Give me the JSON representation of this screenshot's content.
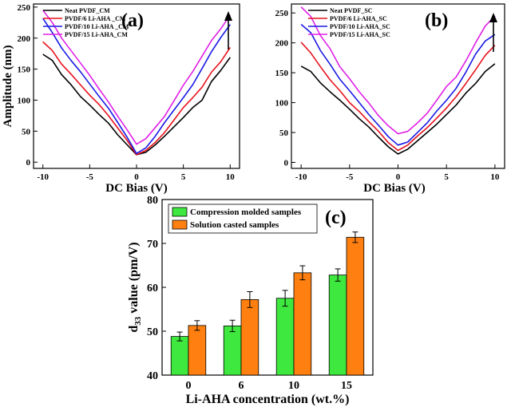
{
  "chart_data": [
    {
      "type": "line",
      "panel_label": "(a)",
      "xlabel": "DC Bias (V)",
      "ylabel": "Amplitude (nm)",
      "xlim": [
        -11,
        11
      ],
      "ylim": [
        -10,
        255
      ],
      "x_ticks": [
        -10,
        -5,
        0,
        5,
        10
      ],
      "y_ticks": [
        0,
        50,
        100,
        150,
        200,
        250
      ],
      "legend_position": "top-left",
      "arrow": "up",
      "x": [
        -10,
        -9,
        -8,
        -7,
        -6,
        -5,
        -4,
        -3,
        -2,
        -1,
        0,
        1,
        2,
        3,
        4,
        5,
        6,
        7,
        8,
        9,
        10
      ],
      "series": [
        {
          "name": "Neat PVDF_CM",
          "color": "#000000",
          "values": [
            174,
            164,
            141,
            125,
            106,
            92,
            77,
            63,
            44,
            28,
            12,
            16,
            28,
            42,
            57,
            72,
            88,
            100,
            130,
            148,
            169
          ]
        },
        {
          "name": "PVDF/6 Li-AHA _CM",
          "color": "#e8121c",
          "values": [
            194,
            180,
            158,
            142,
            125,
            108,
            93,
            75,
            55,
            35,
            12,
            19,
            32,
            48,
            68,
            88,
            104,
            121,
            145,
            162,
            185
          ]
        },
        {
          "name": "PVDF/10 Li-AHA _CM",
          "color": "#1a1ae6",
          "values": [
            232,
            209,
            184,
            164,
            146,
            126,
            106,
            87,
            64,
            40,
            14,
            23,
            42,
            64,
            84,
            104,
            125,
            151,
            178,
            201,
            222
          ]
        },
        {
          "name": "PVDF/15 Li-AHA_CM",
          "color": "#e020e8",
          "values": [
            245,
            225,
            200,
            180,
            160,
            140,
            118,
            97,
            74,
            52,
            29,
            38,
            56,
            74,
            99,
            124,
            146,
            171,
            196,
            215,
            237
          ]
        }
      ]
    },
    {
      "type": "line",
      "panel_label": "(b)",
      "xlabel": "DC Bias (V)",
      "ylabel": "",
      "xlim": [
        -11,
        11
      ],
      "ylim": [
        -10,
        265
      ],
      "x_ticks": [
        -10,
        -5,
        0,
        5,
        10
      ],
      "y_ticks": [
        0,
        50,
        100,
        150,
        200,
        250
      ],
      "legend_position": "top-left",
      "arrow": "up",
      "x": [
        -10,
        -9,
        -8,
        -7,
        -6,
        -5,
        -4,
        -3,
        -2,
        -1,
        0,
        1,
        2,
        3,
        4,
        5,
        6,
        7,
        8,
        9,
        10
      ],
      "series": [
        {
          "name": "Neat PVDF_SC",
          "color": "#000000",
          "values": [
            161,
            152,
            133,
            118,
            104,
            89,
            73,
            59,
            42,
            26,
            14,
            22,
            36,
            50,
            64,
            80,
            96,
            116,
            132,
            152,
            165
          ]
        },
        {
          "name": "PVDF/6 Li-AHA_SC",
          "color": "#e8121c",
          "values": [
            201,
            183,
            160,
            138,
            120,
            100,
            85,
            68,
            52,
            33,
            20,
            29,
            44,
            58,
            74,
            91,
            110,
            132,
            155,
            179,
            196
          ]
        },
        {
          "name": "PVDF/10 Li-AHA_SC",
          "color": "#1a1ae6",
          "values": [
            231,
            217,
            187,
            164,
            139,
            120,
            100,
            80,
            62,
            43,
            29,
            34,
            50,
            66,
            86,
            104,
            124,
            151,
            181,
            203,
            214
          ]
        },
        {
          "name": "PVDF/15 Li-AHA_SC",
          "color": "#e020e8",
          "values": [
            260,
            244,
            212,
            190,
            160,
            140,
            118,
            99,
            78,
            61,
            48,
            52,
            66,
            82,
            104,
            127,
            143,
            170,
            200,
            228,
            245
          ]
        }
      ]
    },
    {
      "type": "bar",
      "panel_label": "(c)",
      "xlabel": "Li-AHA concentration (wt.%)",
      "ylabel_main": "d",
      "ylabel_sub": "33",
      "ylabel_rest": " value (pm/V)",
      "categories": [
        "0",
        "6",
        "10",
        "15"
      ],
      "ylim": [
        40,
        80
      ],
      "y_ticks": [
        40,
        50,
        60,
        70,
        80
      ],
      "legend_position": "top-left",
      "series": [
        {
          "name": "Compression molded samples",
          "color": "#3ee83e",
          "values": [
            48.8,
            51.2,
            57.5,
            62.8
          ],
          "errors": [
            1.0,
            1.3,
            1.8,
            1.4
          ]
        },
        {
          "name": "Solution casted samples",
          "color": "#ff8010",
          "values": [
            51.3,
            57.2,
            63.3,
            71.4
          ],
          "errors": [
            1.1,
            1.8,
            1.6,
            1.2
          ]
        }
      ]
    }
  ]
}
